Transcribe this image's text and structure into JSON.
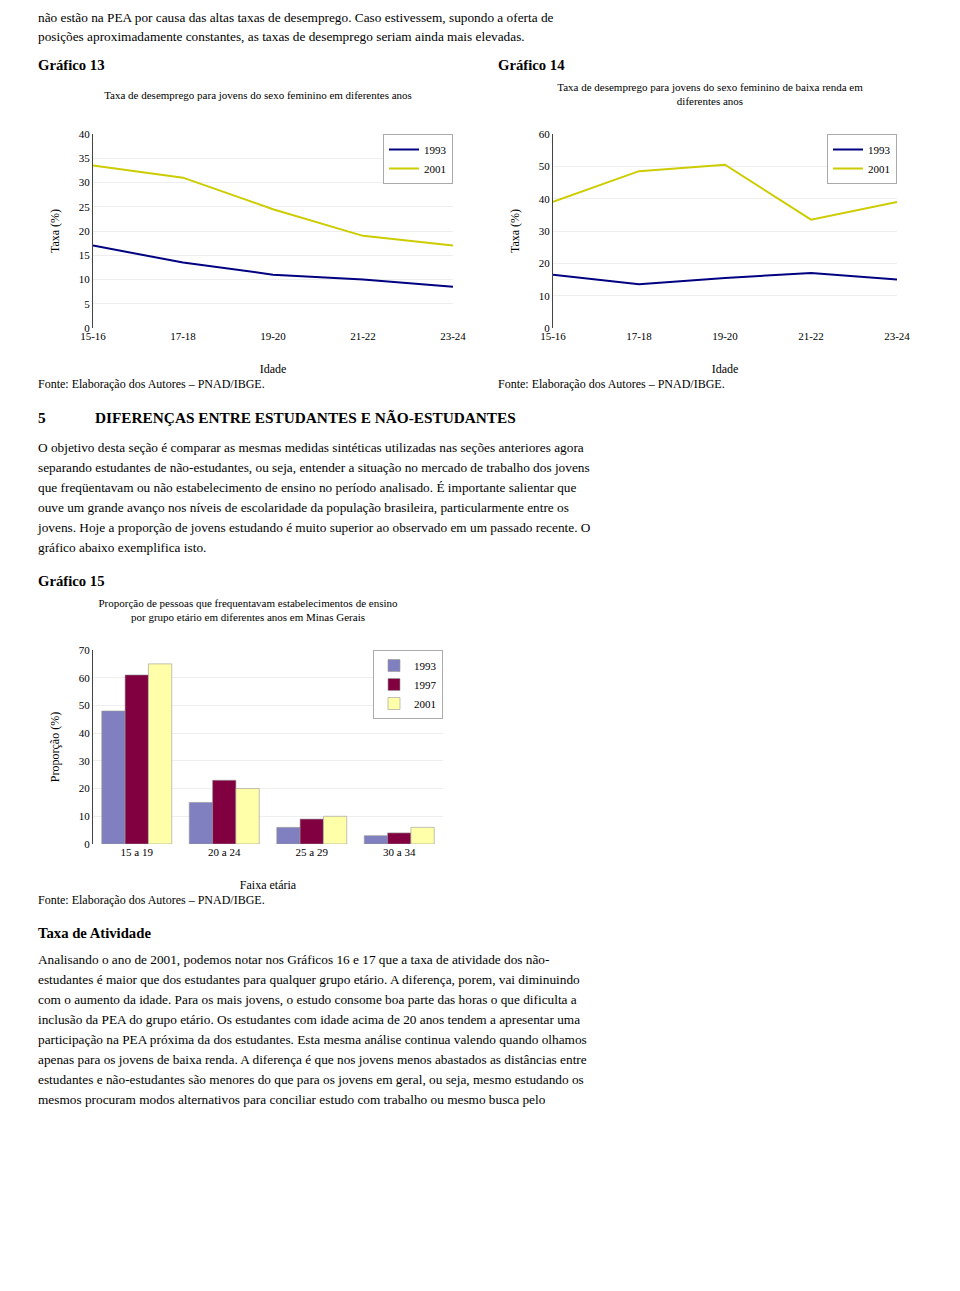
{
  "texts": {
    "top": [
      "não estão na PEA por causa das altas taxas de desemprego. Caso estivessem, supondo a oferta de",
      "posições aproximadamente constantes, as taxas de desemprego seriam ainda mais elevadas."
    ],
    "section_number": "5",
    "section_title": "DIFERENÇAS ENTRE ESTUDANTES E NÃO-ESTUDANTES",
    "body": [
      "O objetivo desta seção é comparar as mesmas medidas sintéticas utilizadas nas seções anteriores agora",
      "separando estudantes de não-estudantes, ou seja, entender a situação no mercado de trabalho dos jovens",
      "que freqüentavam ou não estabelecimento de ensino no período analisado. É importante salientar que",
      "ouve um grande avanço nos níveis de escolaridade da população brasileira, particularmente entre os",
      "jovens. Hoje a proporção de jovens estudando é muito superior ao observado em um passado recente. O",
      "gráfico abaixo exemplifica isto."
    ],
    "bottom_heading": "Taxa de Atividade",
    "bottom": [
      "Analisando o ano de 2001, podemos notar nos Gráficos 16 e 17 que a taxa de atividade dos não-",
      "estudantes é maior que dos estudantes para qualquer grupo etário. A diferença, porem, vai diminuindo",
      "com o aumento da idade. Para os mais jovens, o estudo consome boa parte das horas o que dificulta a",
      "inclusão da PEA do grupo etário. Os estudantes com idade acima de 20 anos tendem a apresentar uma",
      "participação na PEA próxima da dos estudantes. Esta mesma análise continua valendo quando olhamos",
      "apenas para os jovens de baixa renda. A diferença é que nos jovens menos abastados as distâncias entre",
      "estudantes e não-estudantes são menores do que para os jovens em geral, ou seja, mesmo estudando os",
      "mesmos procuram modos alternativos para conciliar estudo com trabalho ou mesmo busca pelo"
    ]
  },
  "chart_data": [
    {
      "type": "line",
      "label": "Gráfico 13",
      "title": "Taxa de desemprego para jovens do sexo feminino em diferentes anos",
      "source": "Fonte: Elaboração dos Autores – PNAD/IBGE.",
      "xlabel": "Idade",
      "ylabel": "Taxa (%)",
      "categories": [
        "15-16",
        "17-18",
        "19-20",
        "21-22",
        "23-24"
      ],
      "series": [
        {
          "name": "1993",
          "color": "#000080",
          "values": [
            17.0,
            13.5,
            11.0,
            10.0,
            8.5
          ]
        },
        {
          "name": "2001",
          "color": "#cccc00",
          "values": [
            33.5,
            31.0,
            24.5,
            19.0,
            17.0
          ]
        }
      ],
      "ylim": [
        0,
        40
      ],
      "yticks": [
        0,
        5,
        10,
        15,
        20,
        25,
        30,
        35,
        40
      ],
      "grid": true,
      "legend": "upper right"
    },
    {
      "type": "line",
      "label": "Gráfico 14",
      "title": "Taxa de desemprego para jovens do sexo feminino de baixa renda em\ndiferentes anos",
      "source": "Fonte: Elaboração dos Autores – PNAD/IBGE.",
      "xlabel": "Idade",
      "ylabel": "Taxa (%)",
      "categories": [
        "15-16",
        "17-18",
        "19-20",
        "21-22",
        "23-24"
      ],
      "series": [
        {
          "name": "1993",
          "color": "#000080",
          "values": [
            16.5,
            13.5,
            15.5,
            17.0,
            15.0
          ]
        },
        {
          "name": "2001",
          "color": "#cccc00",
          "values": [
            39.0,
            48.5,
            50.5,
            33.5,
            39.0
          ]
        }
      ],
      "ylim": [
        0,
        60
      ],
      "yticks": [
        0,
        10,
        20,
        30,
        40,
        50,
        60
      ],
      "grid": true,
      "legend": "upper right"
    },
    {
      "type": "bar",
      "label": "Gráfico 15",
      "title": "Proporção de pessoas que frequentavam estabelecimentos de ensino\npor grupo etário em diferentes anos em Minas Gerais",
      "source": "Fonte: Elaboração dos Autores – PNAD/IBGE.",
      "xlabel": "Faixa etária",
      "ylabel": "Proporção (%)",
      "categories": [
        "15 a 19",
        "20 a 24",
        "25 a 29",
        "30 a 34"
      ],
      "series": [
        {
          "name": "1993",
          "color": "#8080c0",
          "values": [
            48,
            15,
            6,
            3
          ]
        },
        {
          "name": "1997",
          "color": "#800040",
          "values": [
            61,
            23,
            9,
            4
          ]
        },
        {
          "name": "2001",
          "color": "#ffffaa",
          "values": [
            65,
            20,
            10,
            6
          ]
        }
      ],
      "ylim": [
        0,
        70
      ],
      "yticks": [
        0,
        10,
        20,
        30,
        40,
        50,
        60,
        70
      ],
      "grid": true,
      "legend": "upper right"
    }
  ]
}
